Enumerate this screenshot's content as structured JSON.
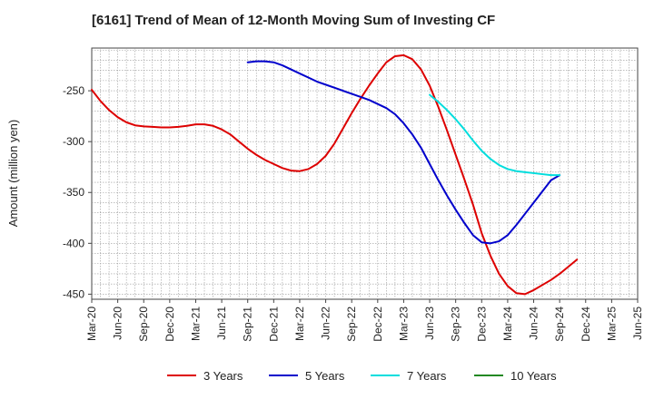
{
  "chart_data": {
    "type": "line",
    "title": "[6161]  Trend of Mean of 12-Month Moving Sum of Investing CF",
    "xlabel": "",
    "ylabel": "Amount (million yen)",
    "ylim": [
      -455,
      -208
    ],
    "yticks": [
      -250,
      -300,
      -350,
      -400,
      -450
    ],
    "xlim": [
      0,
      61
    ],
    "xticks": [
      {
        "i": 0,
        "label": "Mar-20"
      },
      {
        "i": 3,
        "label": "Jun-20"
      },
      {
        "i": 6,
        "label": "Sep-20"
      },
      {
        "i": 9,
        "label": "Dec-20"
      },
      {
        "i": 12,
        "label": "Mar-21"
      },
      {
        "i": 15,
        "label": "Jun-21"
      },
      {
        "i": 18,
        "label": "Sep-21"
      },
      {
        "i": 21,
        "label": "Dec-21"
      },
      {
        "i": 24,
        "label": "Mar-22"
      },
      {
        "i": 27,
        "label": "Jun-22"
      },
      {
        "i": 30,
        "label": "Sep-22"
      },
      {
        "i": 33,
        "label": "Dec-22"
      },
      {
        "i": 36,
        "label": "Mar-23"
      },
      {
        "i": 39,
        "label": "Jun-23"
      },
      {
        "i": 42,
        "label": "Sep-23"
      },
      {
        "i": 45,
        "label": "Dec-23"
      },
      {
        "i": 48,
        "label": "Mar-24"
      },
      {
        "i": 51,
        "label": "Jun-24"
      },
      {
        "i": 54,
        "label": "Sep-24"
      },
      {
        "i": 57,
        "label": "Dec-24"
      },
      {
        "i": 60,
        "label": "Mar-25"
      },
      {
        "i": 63,
        "label": "Jun-25"
      }
    ],
    "series": [
      {
        "name": "3 Years",
        "color": "#dd0000",
        "points": [
          [
            0,
            -249
          ],
          [
            1,
            -260
          ],
          [
            2,
            -269
          ],
          [
            3,
            -276
          ],
          [
            4,
            -281
          ],
          [
            5,
            -284
          ],
          [
            6,
            -285
          ],
          [
            7,
            -285.5
          ],
          [
            8,
            -286
          ],
          [
            9,
            -286
          ],
          [
            10,
            -285.5
          ],
          [
            11,
            -284.5
          ],
          [
            12,
            -283
          ],
          [
            13,
            -283
          ],
          [
            14,
            -284.5
          ],
          [
            15,
            -288
          ],
          [
            16,
            -293
          ],
          [
            17,
            -300
          ],
          [
            18,
            -307
          ],
          [
            19,
            -313
          ],
          [
            20,
            -318
          ],
          [
            21,
            -322
          ],
          [
            22,
            -326
          ],
          [
            23,
            -328.5
          ],
          [
            24,
            -329
          ],
          [
            25,
            -327
          ],
          [
            26,
            -322
          ],
          [
            27,
            -314
          ],
          [
            28,
            -302
          ],
          [
            29,
            -287
          ],
          [
            30,
            -272
          ],
          [
            31,
            -258
          ],
          [
            32,
            -245
          ],
          [
            33,
            -233
          ],
          [
            34,
            -222
          ],
          [
            35,
            -216
          ],
          [
            36,
            -215
          ],
          [
            37,
            -219
          ],
          [
            38,
            -229
          ],
          [
            39,
            -245
          ],
          [
            40,
            -266
          ],
          [
            41,
            -289
          ],
          [
            42,
            -313
          ],
          [
            43,
            -337
          ],
          [
            44,
            -362
          ],
          [
            45,
            -390
          ],
          [
            46,
            -412
          ],
          [
            47,
            -430
          ],
          [
            48,
            -442
          ],
          [
            49,
            -449
          ],
          [
            50,
            -450
          ],
          [
            51,
            -446
          ],
          [
            52,
            -441
          ],
          [
            53,
            -436
          ],
          [
            54,
            -430
          ],
          [
            55,
            -423
          ],
          [
            56,
            -416
          ]
        ]
      },
      {
        "name": "5 Years",
        "color": "#0000cc",
        "points": [
          [
            18,
            -222
          ],
          [
            19,
            -221
          ],
          [
            20,
            -221
          ],
          [
            21,
            -222
          ],
          [
            22,
            -225
          ],
          [
            23,
            -229
          ],
          [
            24,
            -233
          ],
          [
            25,
            -237
          ],
          [
            26,
            -241
          ],
          [
            27,
            -244
          ],
          [
            28,
            -247
          ],
          [
            29,
            -250
          ],
          [
            30,
            -253
          ],
          [
            31,
            -256
          ],
          [
            32,
            -259
          ],
          [
            33,
            -263
          ],
          [
            34,
            -267
          ],
          [
            35,
            -273
          ],
          [
            36,
            -282
          ],
          [
            37,
            -293
          ],
          [
            38,
            -306
          ],
          [
            39,
            -322
          ],
          [
            40,
            -338
          ],
          [
            41,
            -353
          ],
          [
            42,
            -367
          ],
          [
            43,
            -380
          ],
          [
            44,
            -392
          ],
          [
            45,
            -399
          ],
          [
            46,
            -400
          ],
          [
            47,
            -398
          ],
          [
            48,
            -392
          ],
          [
            49,
            -382
          ],
          [
            50,
            -371
          ],
          [
            51,
            -360
          ],
          [
            52,
            -349
          ],
          [
            53,
            -338
          ],
          [
            54,
            -333
          ]
        ]
      },
      {
        "name": "7 Years",
        "color": "#00dddd",
        "points": [
          [
            39,
            -254
          ],
          [
            40,
            -261
          ],
          [
            41,
            -269
          ],
          [
            42,
            -278
          ],
          [
            43,
            -288
          ],
          [
            44,
            -299
          ],
          [
            45,
            -309
          ],
          [
            46,
            -317
          ],
          [
            47,
            -323
          ],
          [
            48,
            -327
          ],
          [
            49,
            -329
          ],
          [
            50,
            -330
          ],
          [
            51,
            -331
          ],
          [
            52,
            -332
          ],
          [
            53,
            -333
          ],
          [
            54,
            -333
          ]
        ]
      },
      {
        "name": "10 Years",
        "color": "#228822",
        "points": []
      }
    ]
  }
}
